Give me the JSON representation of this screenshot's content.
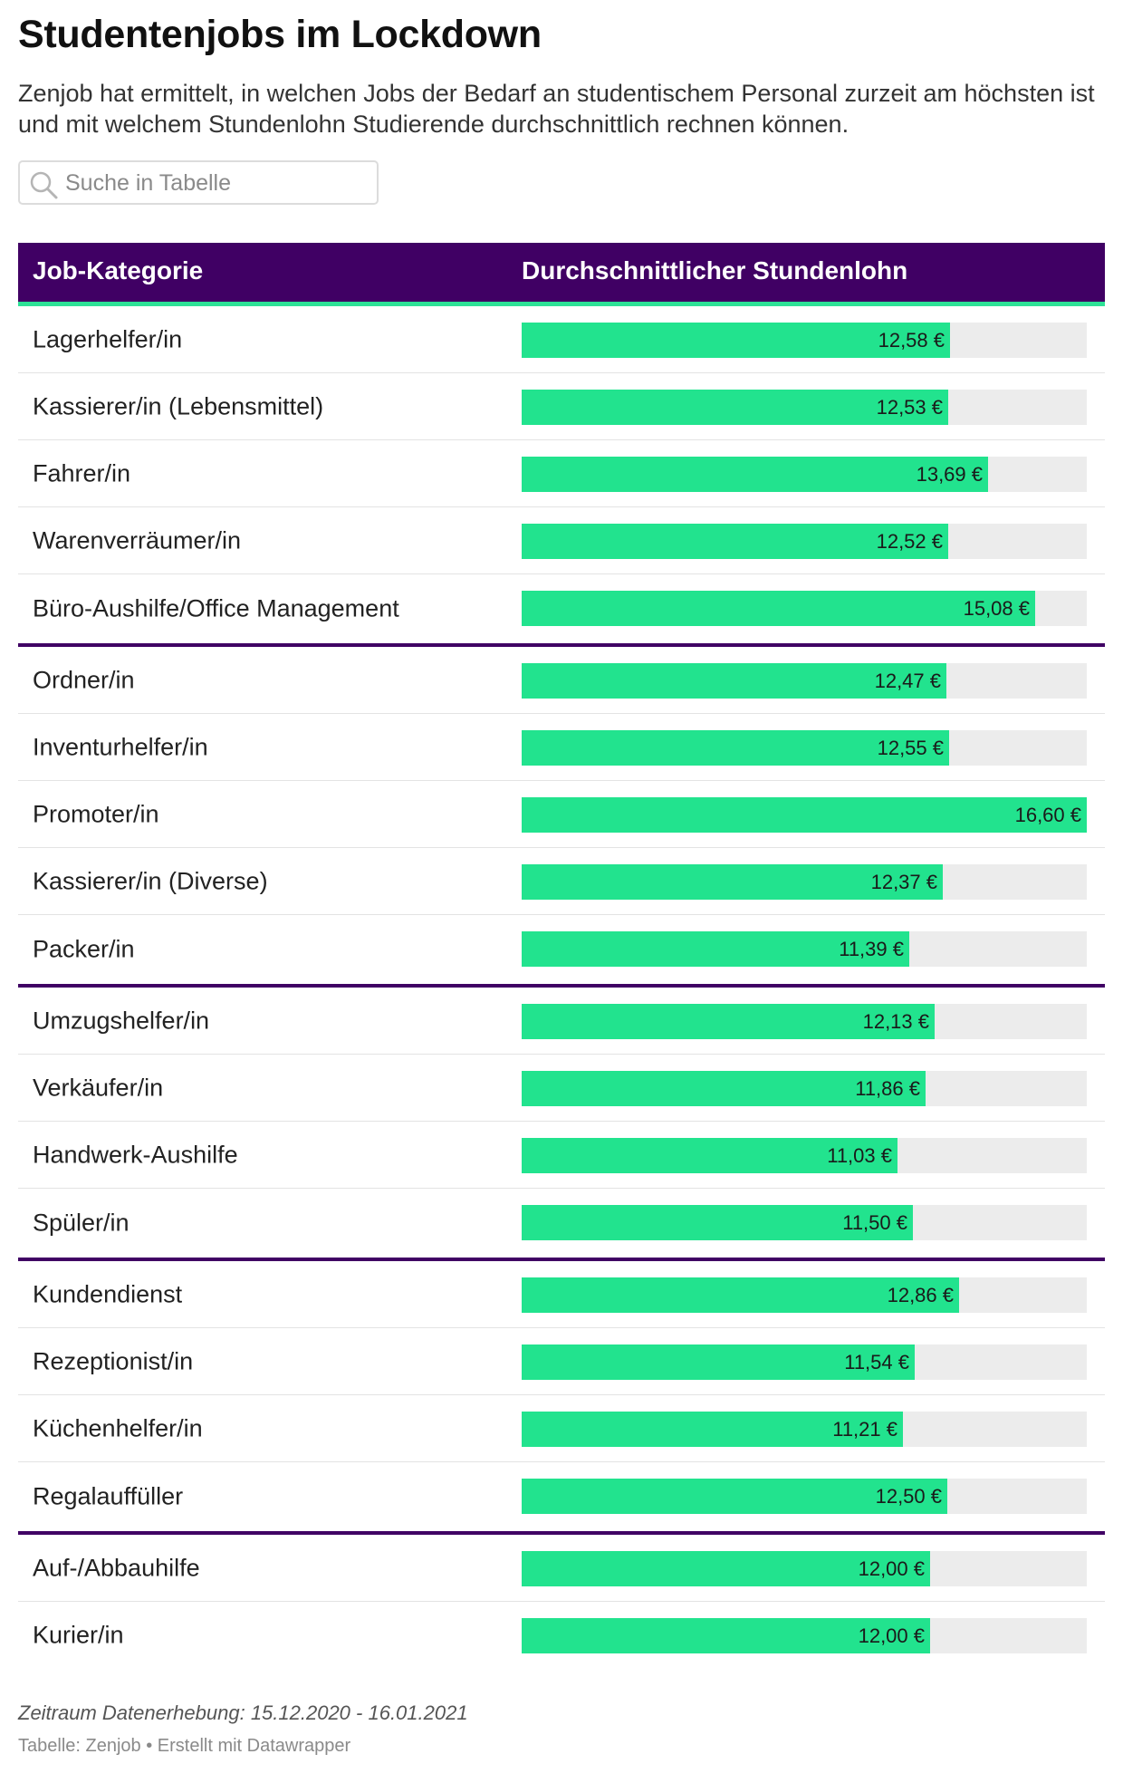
{
  "title": "Studentenjobs im Lockdown",
  "intro": "Zenjob hat ermittelt, in welchen Jobs der Bedarf an studentischem Personal zurzeit am höchsten ist und mit welchem Stundenlohn Studierende durchschnittlich rechnen können.",
  "search": {
    "placeholder": "Suche in Tabelle",
    "icon": "search-icon"
  },
  "colors": {
    "header_bg": "#400064",
    "header_rule": "#2de196",
    "bar": "#22e38e",
    "track": "#ececec",
    "group_rule": "#400064"
  },
  "table": {
    "columns": [
      "Job-Kategorie",
      "Durchschnittlicher Stundenlohn"
    ]
  },
  "chart_data": {
    "type": "table",
    "columns": [
      "Job-Kategorie",
      "Durchschnittlicher Stundenlohn"
    ],
    "max_value": 16.6,
    "groups": [
      [
        {
          "label": "Lagerhelfer/in",
          "value": 12.58,
          "text": "12,58 €"
        },
        {
          "label": "Kassierer/in (Lebensmittel)",
          "value": 12.53,
          "text": "12,53 €"
        },
        {
          "label": "Fahrer/in",
          "value": 13.69,
          "text": "13,69 €"
        },
        {
          "label": "Warenverräumer/in",
          "value": 12.52,
          "text": "12,52 €"
        },
        {
          "label": "Büro-Aushilfe/Office Management",
          "value": 15.08,
          "text": "15,08 €"
        }
      ],
      [
        {
          "label": "Ordner/in",
          "value": 12.47,
          "text": "12,47 €"
        },
        {
          "label": "Inventurhelfer/in",
          "value": 12.55,
          "text": "12,55 €"
        },
        {
          "label": "Promoter/in",
          "value": 16.6,
          "text": "16,60 €"
        },
        {
          "label": "Kassierer/in (Diverse)",
          "value": 12.37,
          "text": "12,37 €"
        },
        {
          "label": "Packer/in",
          "value": 11.39,
          "text": "11,39 €"
        }
      ],
      [
        {
          "label": "Umzugshelfer/in",
          "value": 12.13,
          "text": "12,13 €"
        },
        {
          "label": "Verkäufer/in",
          "value": 11.86,
          "text": "11,86 €"
        },
        {
          "label": "Handwerk-Aushilfe",
          "value": 11.03,
          "text": "11,03 €"
        },
        {
          "label": "Spüler/in",
          "value": 11.5,
          "text": "11,50 €"
        }
      ],
      [
        {
          "label": "Kundendienst",
          "value": 12.86,
          "text": "12,86 €"
        },
        {
          "label": "Rezeptionist/in",
          "value": 11.54,
          "text": "11,54 €"
        },
        {
          "label": "Küchenhelfer/in",
          "value": 11.21,
          "text": "11,21 €"
        },
        {
          "label": "Regalauffüller",
          "value": 12.5,
          "text": "12,50 €"
        }
      ],
      [
        {
          "label": "Auf-/Abbauhilfe",
          "value": 12.0,
          "text": "12,00 €"
        },
        {
          "label": "Kurier/in",
          "value": 12.0,
          "text": "12,00 €"
        }
      ]
    ]
  },
  "footer": {
    "note": "Zeitraum Datenerhebung: 15.12.2020 - 16.01.2021",
    "credit": "Tabelle: Zenjob • Erstellt mit Datawrapper"
  }
}
